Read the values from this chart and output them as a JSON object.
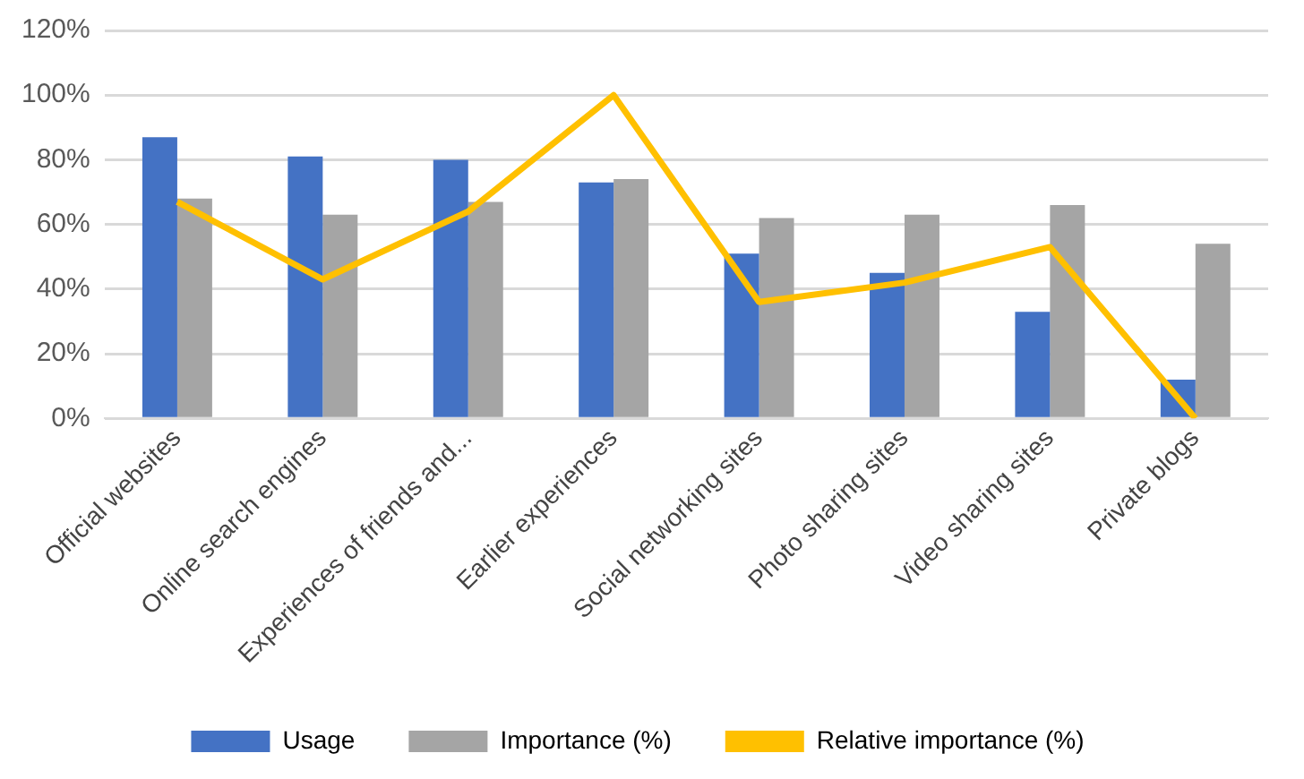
{
  "chart_data": {
    "type": "bar",
    "categories": [
      "Official websites",
      "Online search engines",
      "Experiences of friends and...",
      "Earlier experiences",
      "Social networking sites",
      "Photo sharing sites",
      "Video sharing sites",
      "Private blogs"
    ],
    "series": [
      {
        "name": "Usage",
        "color": "#4472c4",
        "values": [
          87,
          81,
          80,
          73,
          51,
          45,
          33,
          12
        ]
      },
      {
        "name": "Importance (%)",
        "color": "#a5a5a5",
        "values": [
          68,
          63,
          67,
          74,
          62,
          63,
          66,
          54
        ]
      },
      {
        "name": "Relative importance (%)",
        "type": "line",
        "color": "#ffc000",
        "values": [
          67,
          43,
          64,
          100,
          36,
          42,
          53,
          0
        ]
      }
    ],
    "ylim": [
      0,
      120
    ],
    "yticks": [
      {
        "value": 0,
        "label": "0%"
      },
      {
        "value": 20,
        "label": "20%"
      },
      {
        "value": 40,
        "label": "40%"
      },
      {
        "value": 60,
        "label": "60%"
      },
      {
        "value": 80,
        "label": "80%"
      },
      {
        "value": 100,
        "label": "100%"
      },
      {
        "value": 120,
        "label": "120%"
      }
    ],
    "grid": "y",
    "legend": "bottom",
    "marker": "none"
  }
}
